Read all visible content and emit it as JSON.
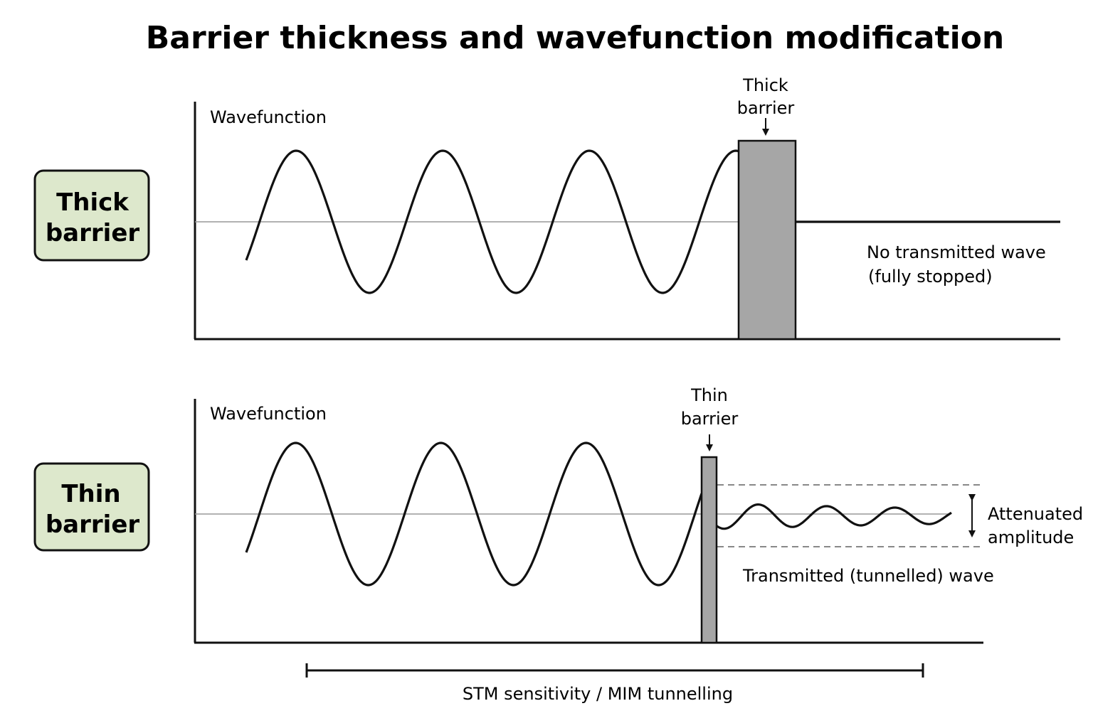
{
  "title": "Barrier thickness and wavefunction modification",
  "colors": {
    "label_fill": "#dde8cc",
    "barrier_fill": "#a6a6a6",
    "line": "#111111",
    "axis_line": "#999999",
    "dashed": "#888888"
  },
  "panels": {
    "thick": {
      "side_label": [
        "Thick",
        "barrier"
      ],
      "axis_label": "Wavefunction",
      "barrier_label": [
        "Thick",
        "barrier"
      ],
      "note": [
        "No transmitted wave",
        "(fully stopped)"
      ]
    },
    "thin": {
      "side_label": [
        "Thin",
        "barrier"
      ],
      "axis_label": "Wavefunction",
      "barrier_label": [
        "Thin",
        "barrier"
      ],
      "amplitude_label": [
        "Attenuated",
        "amplitude"
      ],
      "transmitted_label": "Transmitted (tunnelled) wave"
    }
  },
  "footer": {
    "range_label": "STM sensitivity / MIM tunnelling"
  }
}
